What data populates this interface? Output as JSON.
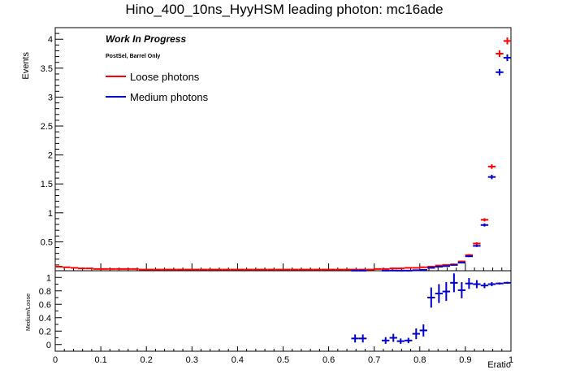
{
  "chart_data": {
    "type": "scatter",
    "title": "Hino_400_10ns_HyyHSM leading photon: mc16ade",
    "xlabel": "Eratio",
    "ylabel": "Events",
    "xlim": [
      0,
      1
    ],
    "ylim": [
      0,
      4.2
    ],
    "ratio_ylabel": "Medium/Loose",
    "ratio_ylim": [
      -0.1,
      1.1
    ],
    "annotations": {
      "status": "Work In Progress",
      "selection": "PostSel, Barrel Only"
    },
    "x_ticks": [
      "0",
      "0.1",
      "0.2",
      "0.3",
      "0.4",
      "0.5",
      "0.6",
      "0.7",
      "0.8",
      "0.9",
      "1"
    ],
    "y_ticks": [
      "0.5",
      "1",
      "1.5",
      "2",
      "2.5",
      "3",
      "3.5",
      "4"
    ],
    "ratio_ticks": [
      "0",
      "0.2",
      "0.4",
      "0.6",
      "0.8",
      "1"
    ],
    "bin_width": 0.0167,
    "series": [
      {
        "name": "Loose photons",
        "color": "#ff0000",
        "points": [
          [
            0.008,
            0.07
          ],
          [
            0.025,
            0.06
          ],
          [
            0.042,
            0.05
          ],
          [
            0.058,
            0.04
          ],
          [
            0.075,
            0.04
          ],
          [
            0.092,
            0.03
          ],
          [
            0.108,
            0.03
          ],
          [
            0.125,
            0.03
          ],
          [
            0.142,
            0.03
          ],
          [
            0.158,
            0.03
          ],
          [
            0.175,
            0.03
          ],
          [
            0.192,
            0.02
          ],
          [
            0.208,
            0.02
          ],
          [
            0.225,
            0.02
          ],
          [
            0.242,
            0.02
          ],
          [
            0.258,
            0.02
          ],
          [
            0.275,
            0.02
          ],
          [
            0.292,
            0.02
          ],
          [
            0.308,
            0.02
          ],
          [
            0.325,
            0.02
          ],
          [
            0.342,
            0.02
          ],
          [
            0.358,
            0.02
          ],
          [
            0.375,
            0.02
          ],
          [
            0.392,
            0.02
          ],
          [
            0.408,
            0.02
          ],
          [
            0.425,
            0.02
          ],
          [
            0.442,
            0.02
          ],
          [
            0.458,
            0.02
          ],
          [
            0.475,
            0.02
          ],
          [
            0.492,
            0.02
          ],
          [
            0.508,
            0.02
          ],
          [
            0.525,
            0.02
          ],
          [
            0.542,
            0.02
          ],
          [
            0.558,
            0.02
          ],
          [
            0.575,
            0.02
          ],
          [
            0.592,
            0.02
          ],
          [
            0.608,
            0.02
          ],
          [
            0.625,
            0.02
          ],
          [
            0.642,
            0.02
          ],
          [
            0.658,
            0.02
          ],
          [
            0.675,
            0.02
          ],
          [
            0.692,
            0.02
          ],
          [
            0.708,
            0.03
          ],
          [
            0.725,
            0.03
          ],
          [
            0.742,
            0.04
          ],
          [
            0.758,
            0.04
          ],
          [
            0.775,
            0.05
          ],
          [
            0.792,
            0.05
          ],
          [
            0.808,
            0.06
          ],
          [
            0.825,
            0.07
          ],
          [
            0.842,
            0.09
          ],
          [
            0.858,
            0.1
          ],
          [
            0.875,
            0.11
          ],
          [
            0.892,
            0.16
          ],
          [
            0.908,
            0.27
          ],
          [
            0.925,
            0.47
          ],
          [
            0.942,
            0.88
          ],
          [
            0.958,
            1.8
          ],
          [
            0.975,
            3.75
          ],
          [
            0.992,
            3.97
          ]
        ]
      },
      {
        "name": "Medium photons",
        "color": "#0000cc",
        "points": [
          [
            0.658,
            0.002
          ],
          [
            0.675,
            0.002
          ],
          [
            0.725,
            0.002
          ],
          [
            0.742,
            0.003
          ],
          [
            0.758,
            0.002
          ],
          [
            0.775,
            0.002
          ],
          [
            0.792,
            0.009
          ],
          [
            0.808,
            0.014
          ],
          [
            0.825,
            0.05
          ],
          [
            0.842,
            0.07
          ],
          [
            0.858,
            0.08
          ],
          [
            0.875,
            0.1
          ],
          [
            0.892,
            0.14
          ],
          [
            0.908,
            0.25
          ],
          [
            0.925,
            0.43
          ],
          [
            0.942,
            0.79
          ],
          [
            0.958,
            1.62
          ],
          [
            0.975,
            3.43
          ],
          [
            0.992,
            3.68
          ]
        ]
      }
    ],
    "ratio": {
      "color": "#0000cc",
      "points": [
        [
          0.658,
          0.09,
          0.06
        ],
        [
          0.675,
          0.09,
          0.06
        ],
        [
          0.725,
          0.06,
          0.05
        ],
        [
          0.742,
          0.1,
          0.06
        ],
        [
          0.758,
          0.05,
          0.04
        ],
        [
          0.775,
          0.06,
          0.04
        ],
        [
          0.792,
          0.16,
          0.08
        ],
        [
          0.808,
          0.21,
          0.09
        ],
        [
          0.825,
          0.7,
          0.15
        ],
        [
          0.842,
          0.76,
          0.14
        ],
        [
          0.858,
          0.79,
          0.14
        ],
        [
          0.875,
          0.92,
          0.14
        ],
        [
          0.892,
          0.81,
          0.12
        ],
        [
          0.908,
          0.91,
          0.08
        ],
        [
          0.925,
          0.9,
          0.06
        ],
        [
          0.942,
          0.88,
          0.04
        ],
        [
          0.958,
          0.9,
          0.03
        ],
        [
          0.975,
          0.91,
          0.015
        ],
        [
          0.992,
          0.92,
          0.015
        ]
      ]
    }
  }
}
